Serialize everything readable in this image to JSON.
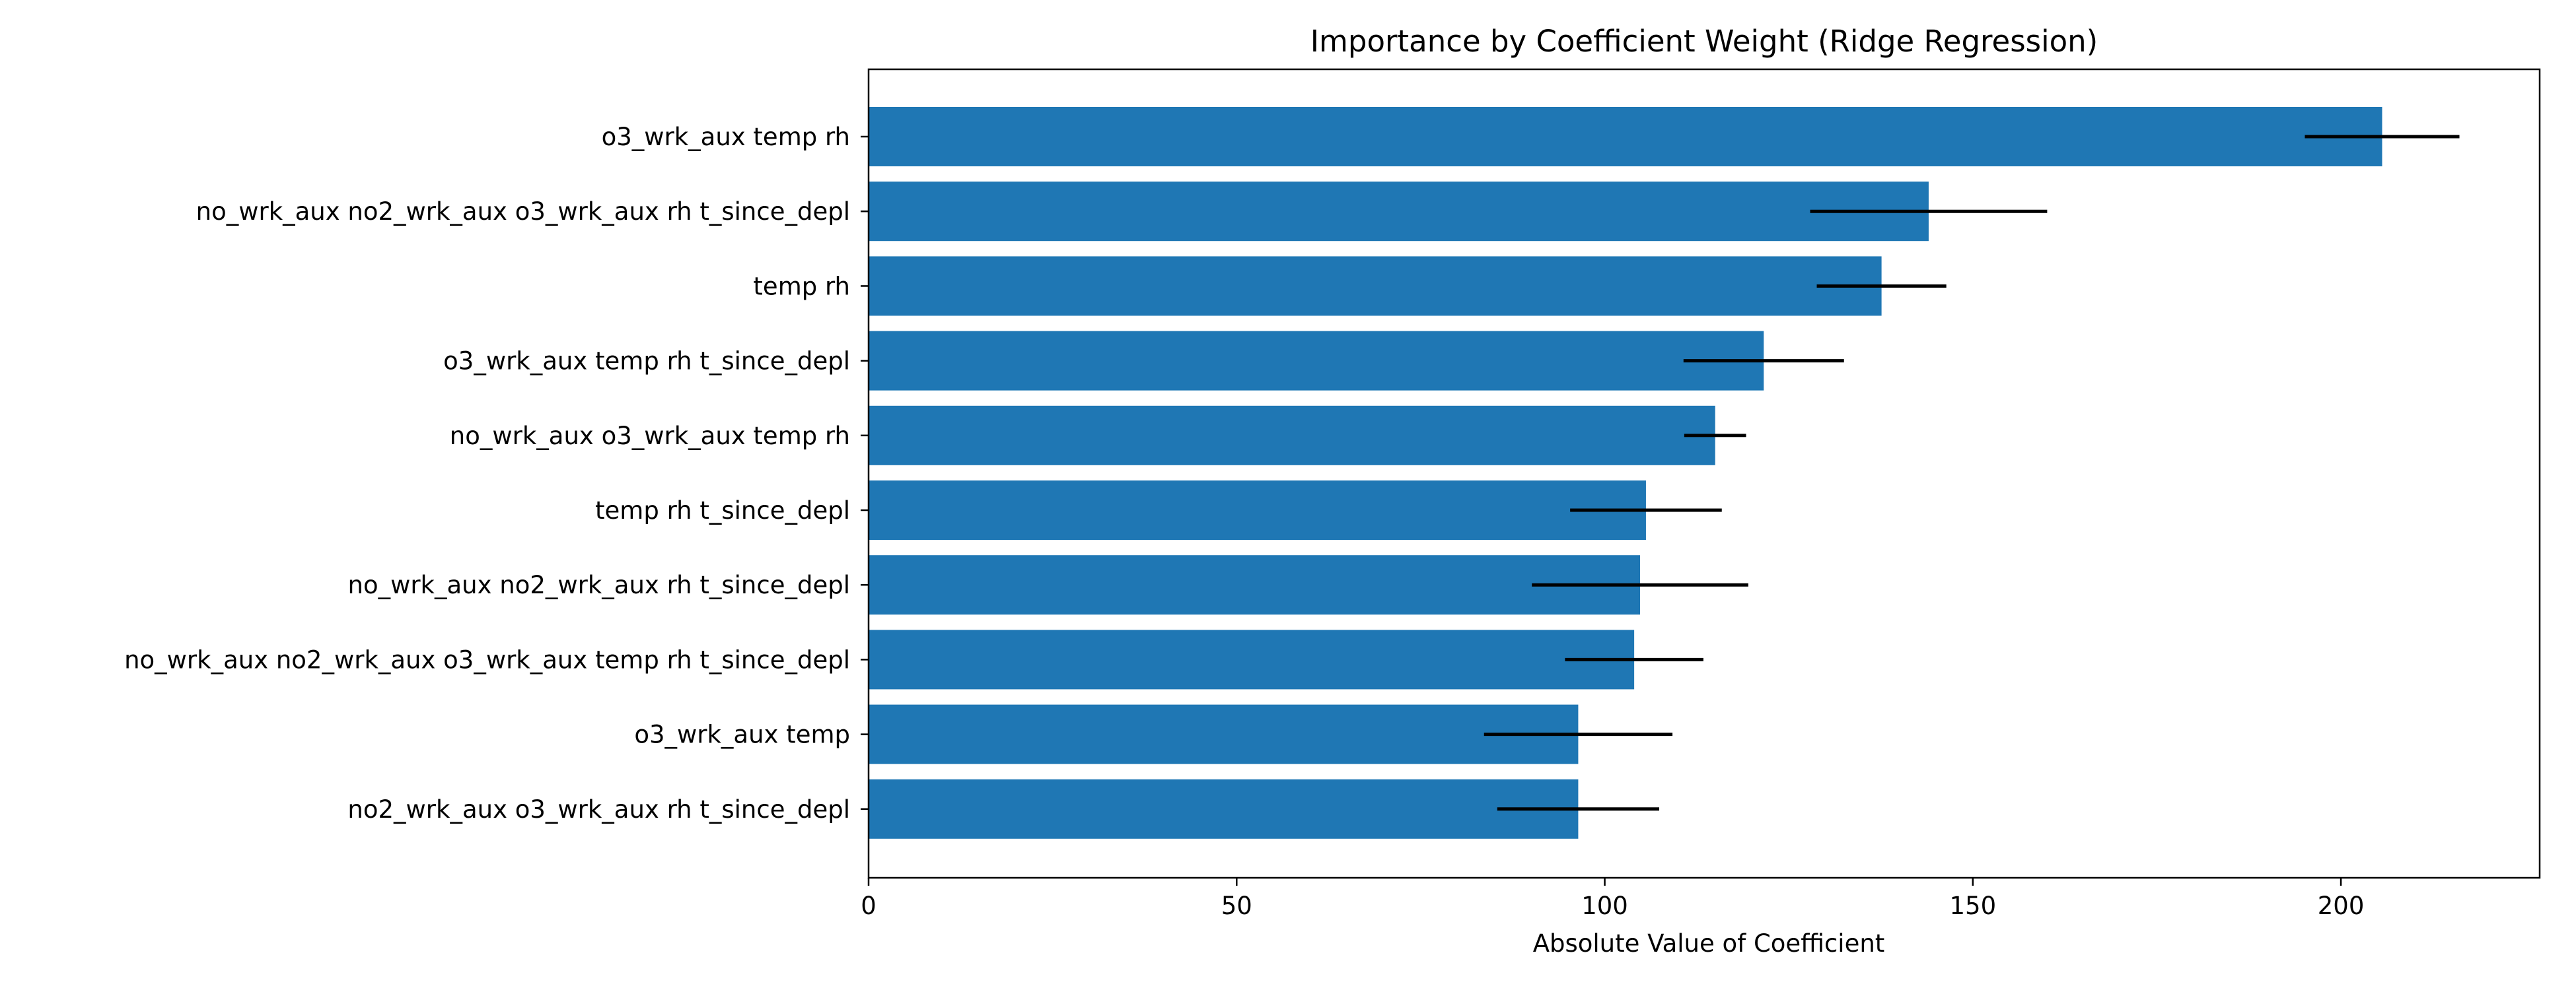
{
  "chart_data": {
    "type": "bar",
    "orientation": "horizontal",
    "title": "Importance by Coefficient Weight (Ridge Regression)",
    "xlabel": "Absolute Value of Coefficient",
    "ylabel": "",
    "xlim": [
      0,
      227
    ],
    "xticks": [
      0,
      50,
      100,
      150,
      200
    ],
    "grid": false,
    "bar_color": "#1f77b4",
    "error_color": "#000000",
    "categories": [
      "o3_wrk_aux temp rh",
      "no_wrk_aux no2_wrk_aux o3_wrk_aux rh t_since_depl",
      "temp rh",
      "o3_wrk_aux temp rh t_since_depl",
      "no_wrk_aux o3_wrk_aux temp rh",
      "temp rh t_since_depl",
      "no_wrk_aux no2_wrk_aux rh t_since_depl",
      "no_wrk_aux no2_wrk_aux o3_wrk_aux temp rh t_since_depl",
      "o3_wrk_aux temp",
      "no2_wrk_aux o3_wrk_aux rh t_since_depl"
    ],
    "values": [
      205.6,
      144.0,
      137.6,
      121.6,
      115.0,
      105.6,
      104.8,
      104.0,
      96.4,
      96.4
    ],
    "errors": [
      10.5,
      16.1,
      8.8,
      10.9,
      4.2,
      10.3,
      14.7,
      9.4,
      12.8,
      11.0
    ]
  }
}
